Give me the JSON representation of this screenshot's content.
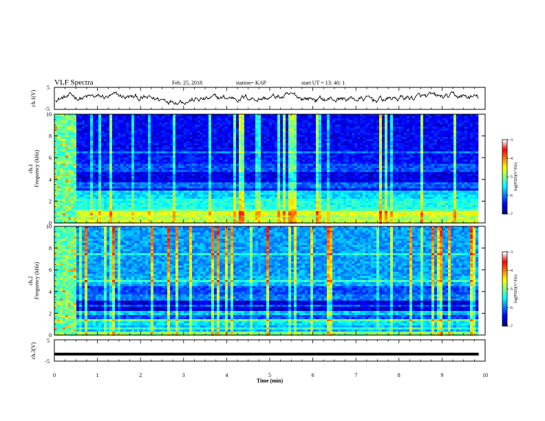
{
  "header": {
    "title": "VLF Spectra",
    "date": "Feb. 25, 2018",
    "station": "station= KAP",
    "start": "start  UT =   13: 40: 1"
  },
  "chart_data": [
    {
      "type": "line",
      "name": "ch1-waveform",
      "ylabel": "ch.1(V)",
      "ylim": [
        -5,
        5
      ],
      "yticks": [
        "5",
        "-5"
      ],
      "xlim": [
        0,
        10
      ]
    },
    {
      "type": "heatmap",
      "name": "ch1-spectrogram",
      "ylabel_line1": "ch.1",
      "ylabel_line2": "Frequency (kHz)",
      "ylim": [
        0,
        10
      ],
      "yticks": [
        "0",
        "2",
        "4",
        "6",
        "8",
        "10"
      ],
      "colorbar": {
        "label": "log(PSD)(V²/Hz)",
        "range": [
          -7,
          -3
        ],
        "ticks": [
          "-3",
          "-4",
          "-5",
          "-6",
          "-7"
        ],
        "colormap": [
          "#000080",
          "#0000ff",
          "#0080ff",
          "#00ffff",
          "#80ff80",
          "#ffff00",
          "#ff8000",
          "#ff0000",
          "#ffffff"
        ]
      }
    },
    {
      "type": "heatmap",
      "name": "ch2-spectrogram",
      "ylabel_line1": "ch.2",
      "ylabel_line2": "Frequency (kHz)",
      "ylim": [
        0,
        10
      ],
      "yticks": [
        "0",
        "2",
        "4",
        "6",
        "8",
        "10"
      ],
      "colorbar": {
        "label": "log(PSD)(V²/Hz)",
        "range": [
          -7,
          -3
        ],
        "ticks": [
          "-3",
          "-4",
          "-5",
          "-6",
          "-7"
        ],
        "colormap": [
          "#000080",
          "#0000ff",
          "#0080ff",
          "#00ffff",
          "#80ff80",
          "#ffff00",
          "#ff8000",
          "#ff0000",
          "#ffffff"
        ]
      }
    },
    {
      "type": "line",
      "name": "ch3-waveform",
      "ylabel": "ch.3(V)",
      "ylim": [
        -5,
        5
      ],
      "yticks": [
        "5",
        "-5"
      ],
      "xlim": [
        0,
        10
      ],
      "constant_level": -1.7
    }
  ],
  "xaxis": {
    "label": "Time (min)",
    "ticks": [
      "0",
      "1",
      "2",
      "3",
      "4",
      "5",
      "6",
      "7",
      "8",
      "9",
      "10"
    ],
    "range": [
      0,
      10
    ],
    "data_end": 9.85
  }
}
